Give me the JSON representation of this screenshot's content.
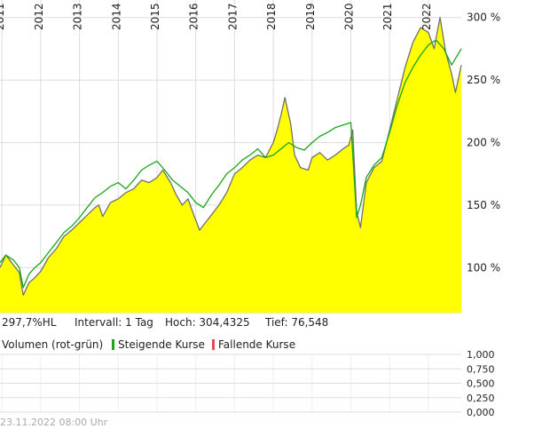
{
  "chart_data": [
    {
      "type": "area",
      "x_labels": [
        "2011",
        "2012",
        "2013",
        "2014",
        "2015",
        "2016",
        "2017",
        "2018",
        "2019",
        "2020",
        "2021",
        "2022"
      ],
      "y_ticks": [
        "100 %",
        "150 %",
        "200 %",
        "250 %",
        "300 %"
      ],
      "y_tick_values": [
        100,
        150,
        200,
        250,
        300
      ],
      "ylim": [
        64,
        314
      ],
      "xlim": [
        2010.95,
        2022.85
      ],
      "grid": true,
      "colors": {
        "area": "#ffff00",
        "main_line": "#707070",
        "benchmark_line": "#19a619",
        "grid": "#dddddd"
      },
      "series": [
        {
          "x": [
            2010.95,
            2011.1,
            2011.3,
            2011.45,
            2011.55,
            2011.7,
            2011.85,
            2012.0,
            2012.2,
            2012.4,
            2012.6,
            2012.8,
            2013.0,
            2013.2,
            2013.4,
            2013.5,
            2013.6,
            2013.8,
            2014.0,
            2014.2,
            2014.4,
            2014.6,
            2014.8,
            2015.0,
            2015.15,
            2015.35,
            2015.5,
            2015.65,
            2015.8,
            2015.95,
            2016.1,
            2016.25,
            2016.4,
            2016.6,
            2016.8,
            2017.0,
            2017.2,
            2017.4,
            2017.6,
            2017.8,
            2018.0,
            2018.1,
            2018.2,
            2018.3,
            2018.45,
            2018.55,
            2018.7,
            2018.9,
            2019.0,
            2019.2,
            2019.4,
            2019.6,
            2019.8,
            2019.95,
            2020.05,
            2020.15,
            2020.25,
            2020.4,
            2020.6,
            2020.8,
            2021.0,
            2021.2,
            2021.4,
            2021.6,
            2021.8,
            2022.0,
            2022.15,
            2022.3,
            2022.45,
            2022.6,
            2022.7,
            2022.85
          ],
          "values": [
            100,
            110,
            102,
            96,
            78,
            88,
            92,
            97,
            108,
            115,
            125,
            130,
            136,
            142,
            148,
            150,
            141,
            152,
            155,
            160,
            163,
            170,
            168,
            172,
            178,
            168,
            158,
            150,
            155,
            142,
            130,
            136,
            142,
            150,
            160,
            175,
            180,
            186,
            190,
            188,
            200,
            210,
            222,
            236,
            215,
            190,
            180,
            178,
            188,
            192,
            186,
            190,
            195,
            198,
            210,
            145,
            132,
            168,
            180,
            185,
            210,
            235,
            260,
            280,
            292,
            288,
            275,
            300,
            272,
            255,
            240,
            262
          ]
        },
        {
          "x": [
            2010.95,
            2011.1,
            2011.3,
            2011.45,
            2011.55,
            2011.7,
            2011.85,
            2012.0,
            2012.2,
            2012.4,
            2012.6,
            2012.8,
            2013.0,
            2013.2,
            2013.4,
            2013.6,
            2013.8,
            2014.0,
            2014.2,
            2014.4,
            2014.6,
            2014.8,
            2015.0,
            2015.2,
            2015.4,
            2015.6,
            2015.8,
            2016.0,
            2016.2,
            2016.4,
            2016.6,
            2016.8,
            2017.0,
            2017.2,
            2017.4,
            2017.6,
            2017.8,
            2018.0,
            2018.2,
            2018.4,
            2018.6,
            2018.8,
            2019.0,
            2019.2,
            2019.4,
            2019.6,
            2019.8,
            2020.0,
            2020.15,
            2020.25,
            2020.4,
            2020.6,
            2020.8,
            2021.0,
            2021.2,
            2021.4,
            2021.6,
            2021.8,
            2022.0,
            2022.2,
            2022.4,
            2022.6,
            2022.85
          ],
          "values": [
            104,
            110,
            106,
            100,
            84,
            95,
            100,
            104,
            112,
            120,
            128,
            133,
            140,
            148,
            156,
            160,
            165,
            168,
            163,
            170,
            178,
            182,
            185,
            178,
            170,
            165,
            160,
            152,
            148,
            158,
            166,
            175,
            180,
            186,
            190,
            195,
            188,
            190,
            195,
            200,
            196,
            194,
            200,
            205,
            208,
            212,
            214,
            216,
            140,
            150,
            172,
            182,
            188,
            208,
            230,
            248,
            260,
            270,
            278,
            282,
            275,
            262,
            275
          ]
        }
      ],
      "info": {
        "label_hl": "297,7%HL",
        "interval": "Intervall: 1 Tag",
        "high": "Hoch: 304,4325",
        "low": "Tief:  76,548"
      }
    },
    {
      "type": "bar",
      "title": "Volumen (rot-grün)",
      "legend": [
        {
          "name": "Steigende Kurse",
          "color": "#19a619"
        },
        {
          "name": "Fallende Kurse",
          "color": "#e05050"
        }
      ],
      "y_ticks": [
        "1,000",
        "0,750",
        "0,500",
        "0,250",
        "0,000"
      ],
      "y_tick_values": [
        1.0,
        0.75,
        0.5,
        0.25,
        0.0
      ],
      "ylim": [
        0,
        1.0
      ],
      "values": []
    }
  ],
  "timestamp": "23.11.2022 08:00 Uhr"
}
